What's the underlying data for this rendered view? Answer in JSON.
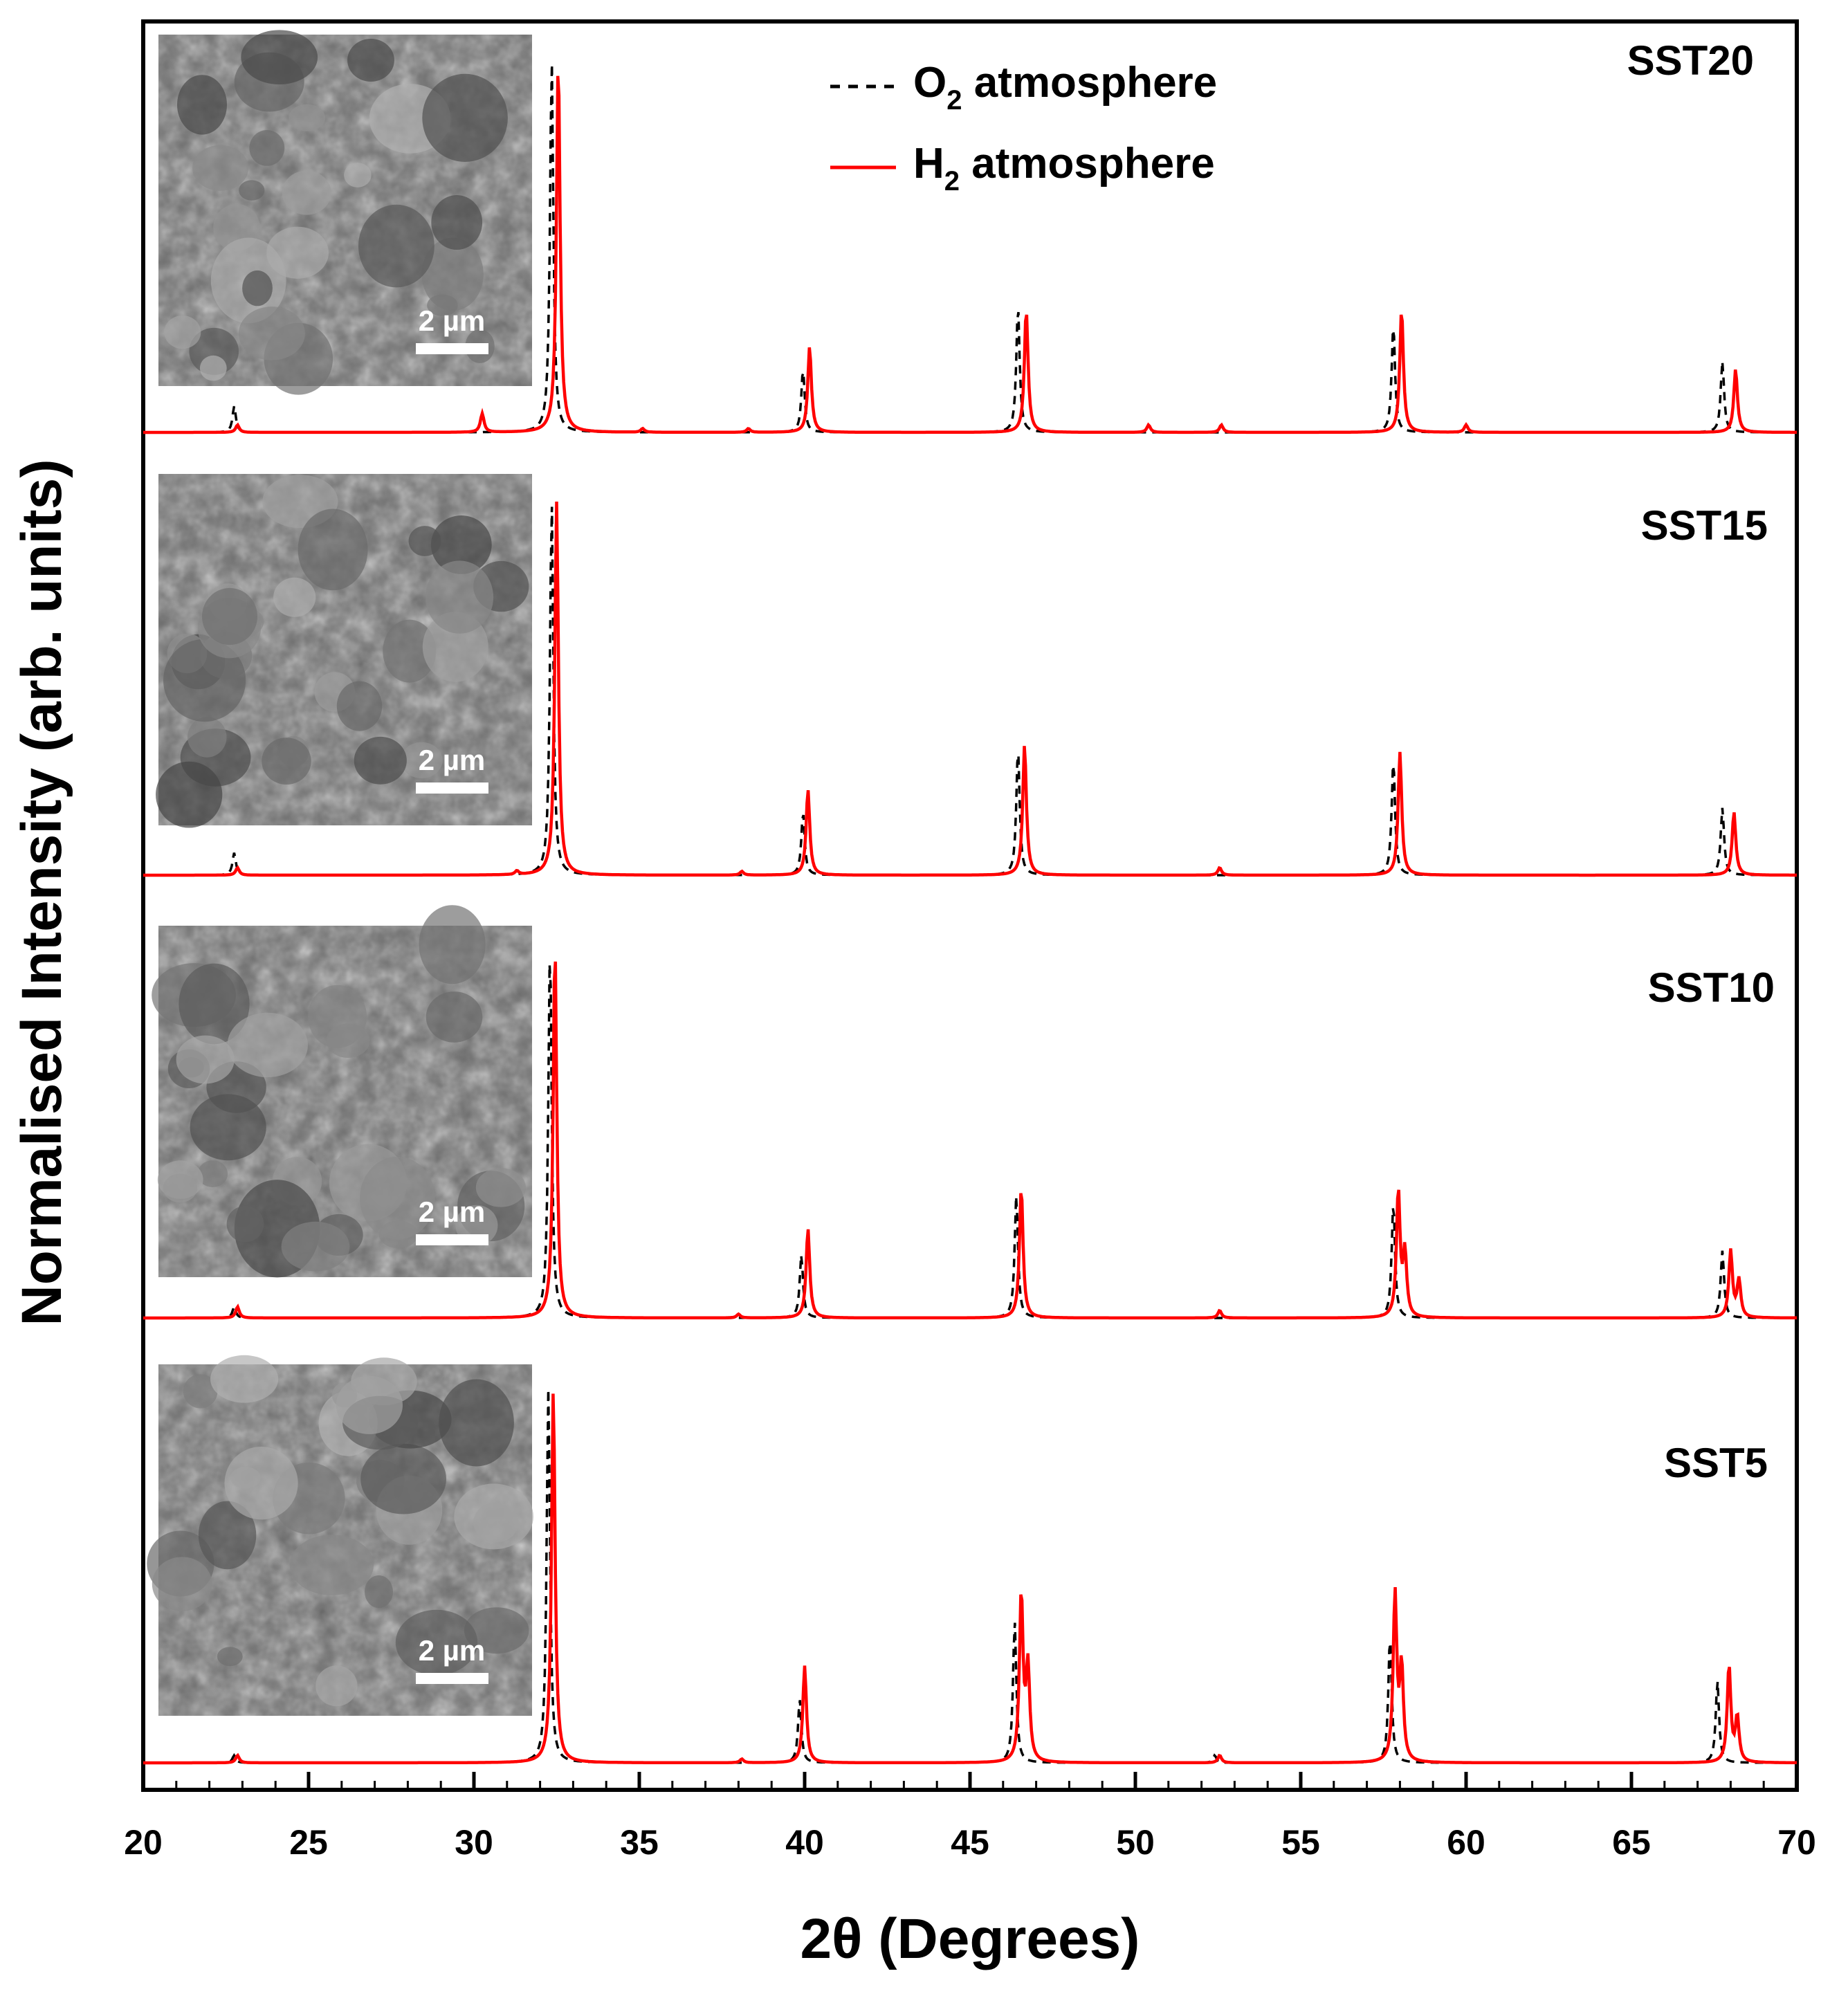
{
  "chart_data": {
    "type": "line",
    "xlabel": "2θ (Degrees)",
    "ylabel": "Normalised Intensity (arb. units)",
    "xlim": [
      20,
      70
    ],
    "xticks": [
      20,
      25,
      30,
      35,
      40,
      45,
      50,
      55,
      60,
      65,
      70
    ],
    "yticks": [],
    "grid": false,
    "legend": {
      "placement": "top-center",
      "entries": [
        {
          "text_main": "O",
          "subscript": "2",
          "text_rest": " atmosphere",
          "style": "dashed",
          "color": "#000000"
        },
        {
          "text_main": "H",
          "subscript": "2",
          "text_rest": " atmosphere",
          "style": "solid",
          "color": "#ff0000"
        }
      ]
    },
    "series_style": {
      "O2 atmosphere": {
        "color": "#000000",
        "dash": "dashed"
      },
      "H2 atmosphere": {
        "color": "#ff0000",
        "dash": "solid"
      }
    },
    "panels": [
      {
        "label": "SST20",
        "sem_scale_label": "2 µm",
        "O2_peaks": [
          [
            22.75,
            0.07
          ],
          [
            32.35,
            1.0
          ],
          [
            39.95,
            0.17
          ],
          [
            46.45,
            0.34
          ],
          [
            57.8,
            0.29
          ],
          [
            67.75,
            0.19
          ]
        ],
        "H2_peaks": [
          [
            22.85,
            0.02
          ],
          [
            30.25,
            0.05
          ],
          [
            32.55,
            1.0
          ],
          [
            35.1,
            0.01
          ],
          [
            38.3,
            0.01
          ],
          [
            40.15,
            0.23
          ],
          [
            46.7,
            0.33
          ],
          [
            50.4,
            0.02
          ],
          [
            52.6,
            0.02
          ],
          [
            58.05,
            0.33
          ],
          [
            60.0,
            0.02
          ],
          [
            68.15,
            0.17
          ]
        ]
      },
      {
        "label": "SST15",
        "sem_scale_label": "2 µm",
        "O2_peaks": [
          [
            22.75,
            0.06
          ],
          [
            32.35,
            1.0
          ],
          [
            39.95,
            0.17
          ],
          [
            46.45,
            0.34
          ],
          [
            57.8,
            0.31
          ],
          [
            67.75,
            0.18
          ]
        ],
        "H2_peaks": [
          [
            22.85,
            0.02
          ],
          [
            31.3,
            0.01
          ],
          [
            32.5,
            1.0
          ],
          [
            38.1,
            0.01
          ],
          [
            40.1,
            0.23
          ],
          [
            46.65,
            0.35
          ],
          [
            52.55,
            0.02
          ],
          [
            58.0,
            0.33
          ],
          [
            68.1,
            0.17
          ]
        ]
      },
      {
        "label": "SST10",
        "sem_scale_label": "2 µm",
        "O2_peaks": [
          [
            22.75,
            0.03
          ],
          [
            32.3,
            1.0
          ],
          [
            39.9,
            0.17
          ],
          [
            46.4,
            0.33
          ],
          [
            57.8,
            0.31
          ],
          [
            67.75,
            0.18
          ]
        ],
        "H2_peaks": [
          [
            22.85,
            0.03
          ],
          [
            32.45,
            1.0
          ],
          [
            38.0,
            0.01
          ],
          [
            40.1,
            0.24
          ],
          [
            46.55,
            0.35
          ],
          [
            52.55,
            0.02
          ],
          [
            57.95,
            0.34
          ],
          [
            58.15,
            0.17
          ],
          [
            68.0,
            0.18
          ],
          [
            68.25,
            0.1
          ]
        ]
      },
      {
        "label": "SST5",
        "sem_scale_label": "2 µm",
        "O2_peaks": [
          [
            22.75,
            0.02
          ],
          [
            32.25,
            1.0
          ],
          [
            39.85,
            0.17
          ],
          [
            46.35,
            0.38
          ],
          [
            52.4,
            0.02
          ],
          [
            57.7,
            0.34
          ],
          [
            67.6,
            0.22
          ]
        ],
        "H2_peaks": [
          [
            22.85,
            0.02
          ],
          [
            32.4,
            1.0
          ],
          [
            38.1,
            0.01
          ],
          [
            40.0,
            0.26
          ],
          [
            46.55,
            0.45
          ],
          [
            46.75,
            0.25
          ],
          [
            52.55,
            0.02
          ],
          [
            57.85,
            0.45
          ],
          [
            58.05,
            0.25
          ],
          [
            67.95,
            0.26
          ],
          [
            68.2,
            0.12
          ]
        ]
      }
    ]
  }
}
